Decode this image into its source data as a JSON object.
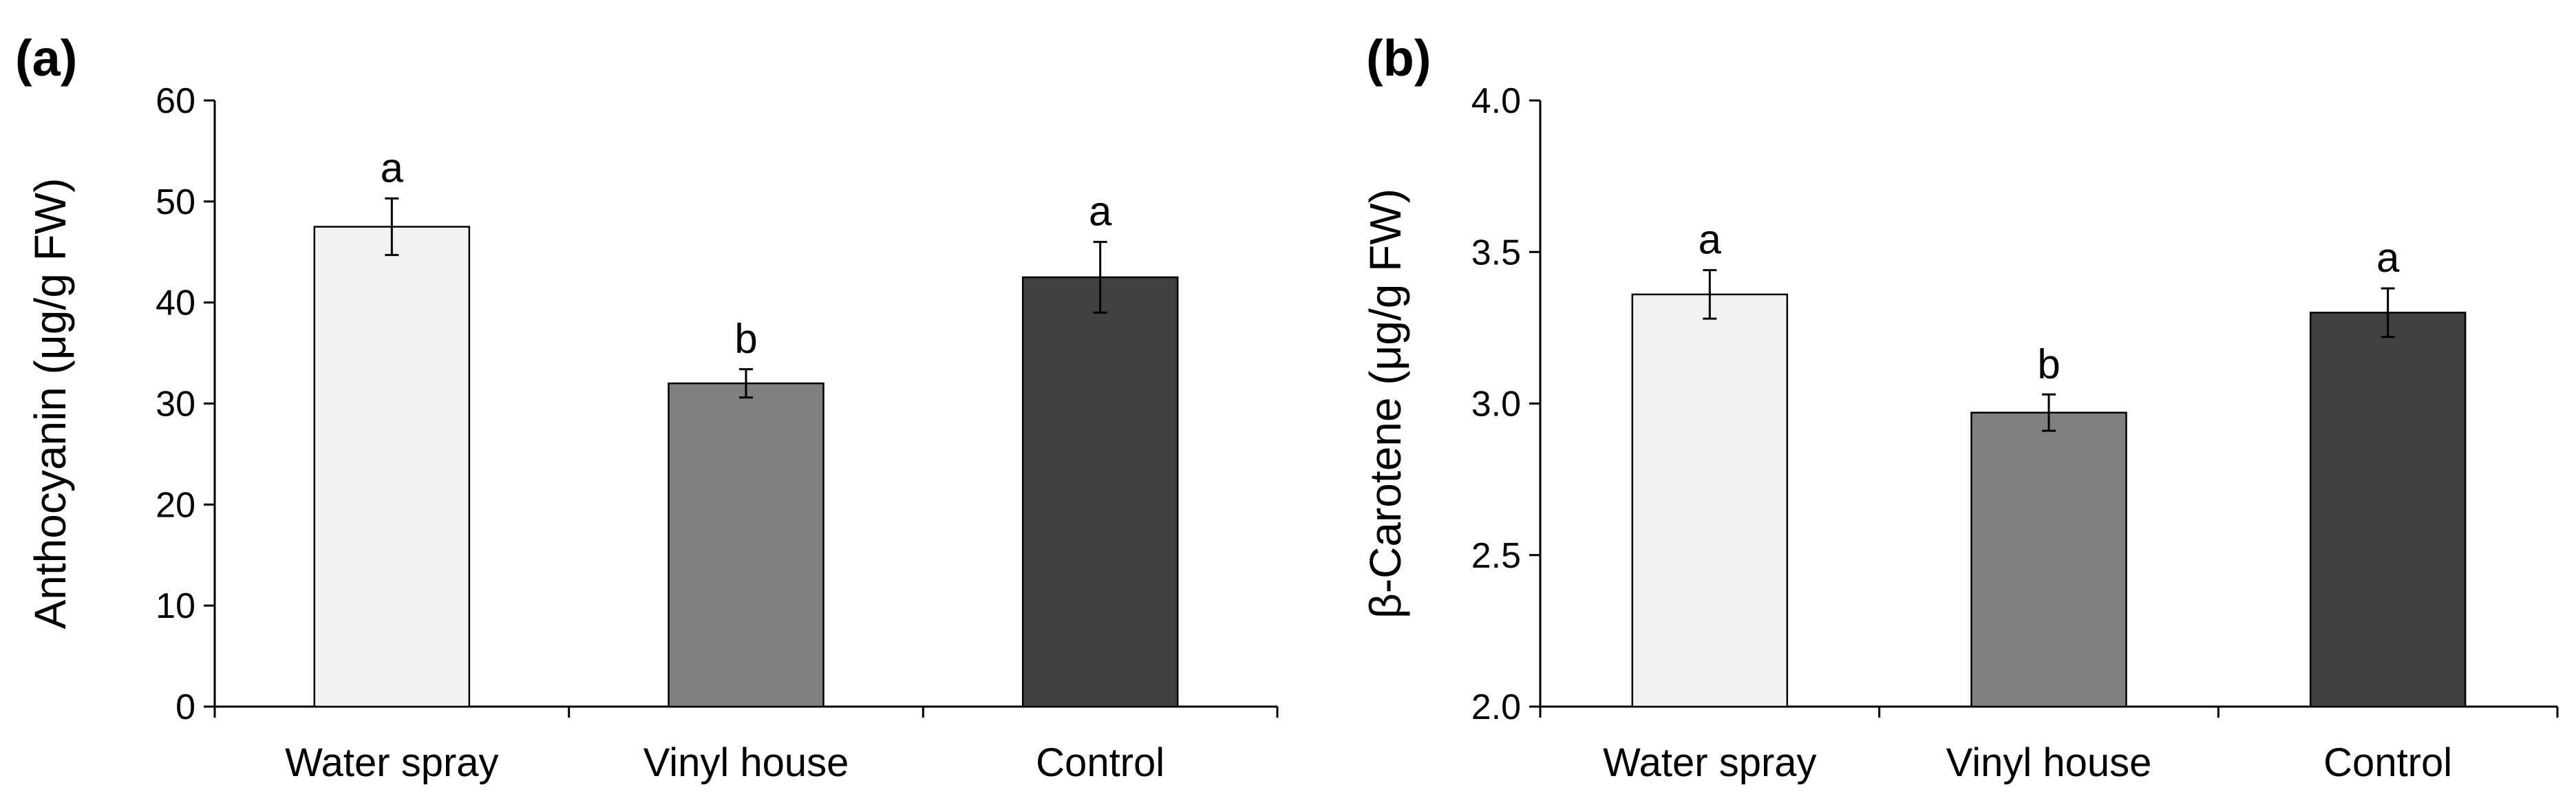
{
  "chart_data": [
    {
      "type": "bar",
      "panel_label": "(a)",
      "title": "",
      "xlabel": "",
      "ylabel": "Anthocyanin (μg/g FW)",
      "categories": [
        "Water spray",
        "Vinyl house",
        "Control"
      ],
      "values": [
        47.5,
        32.0,
        42.5
      ],
      "errors": [
        2.8,
        1.4,
        3.5
      ],
      "significance": [
        "a",
        "b",
        "a"
      ],
      "colors": [
        "#f2f2f2",
        "#808080",
        "#404040"
      ],
      "ylim": [
        0,
        60
      ],
      "yticks": [
        0,
        10,
        20,
        30,
        40,
        50,
        60
      ],
      "ytick_labels": [
        "0",
        "10",
        "20",
        "30",
        "40",
        "50",
        "60"
      ],
      "grid": false,
      "legend": "none"
    },
    {
      "type": "bar",
      "panel_label": "(b)",
      "title": "",
      "xlabel": "",
      "ylabel": "β-Carotene (μg/g FW)",
      "categories": [
        "Water spray",
        "Vinyl house",
        "Control"
      ],
      "values": [
        3.36,
        2.97,
        3.3
      ],
      "errors": [
        0.08,
        0.06,
        0.08
      ],
      "significance": [
        "a",
        "b",
        "a"
      ],
      "colors": [
        "#f2f2f2",
        "#808080",
        "#404040"
      ],
      "ylim": [
        2.0,
        4.0
      ],
      "yticks": [
        2.0,
        2.5,
        3.0,
        3.5,
        4.0
      ],
      "ytick_labels": [
        "2.0",
        "2.5",
        "3.0",
        "3.5",
        "4.0"
      ],
      "grid": false,
      "legend": "none"
    }
  ]
}
